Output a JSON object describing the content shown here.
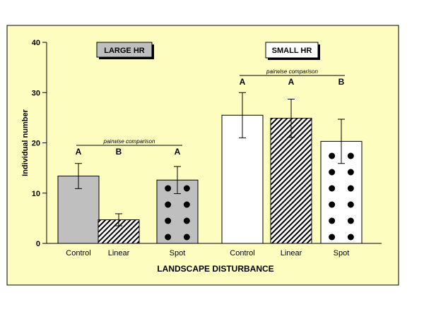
{
  "colors": {
    "panel_bg": "#fdfdbf",
    "large_fill": "#bfbfbf",
    "small_fill": "#ffffff",
    "stroke": "#000000"
  },
  "chart_data": {
    "type": "bar",
    "xlabel": "LANDSCAPE DISTURBANCE",
    "ylabel": "Individual number",
    "ylim": [
      0,
      40
    ],
    "yticks": [
      "0",
      "10",
      "20",
      "30",
      "40"
    ],
    "grid": false,
    "groups": [
      {
        "name": "LARGE HR",
        "comparison_label": "pairwise comparison",
        "bars": [
          {
            "category": "Control",
            "value": 13.4,
            "error": 2.5,
            "letter": "A",
            "pattern": "solid"
          },
          {
            "category": "Linear",
            "value": 4.7,
            "error": 1.2,
            "letter": "B",
            "pattern": "hatch"
          },
          {
            "category": "Spot",
            "value": 12.6,
            "error": 2.7,
            "letter": "A",
            "pattern": "dots"
          }
        ]
      },
      {
        "name": "SMALL HR",
        "comparison_label": "pairwise comparison",
        "bars": [
          {
            "category": "Control",
            "value": 25.5,
            "error": 4.5,
            "letter": "A",
            "pattern": "solid"
          },
          {
            "category": "Linear",
            "value": 24.9,
            "error": 3.8,
            "letter": "A",
            "pattern": "hatch"
          },
          {
            "category": "Spot",
            "value": 20.3,
            "error": 4.4,
            "letter": "B",
            "pattern": "dots"
          }
        ]
      }
    ]
  }
}
